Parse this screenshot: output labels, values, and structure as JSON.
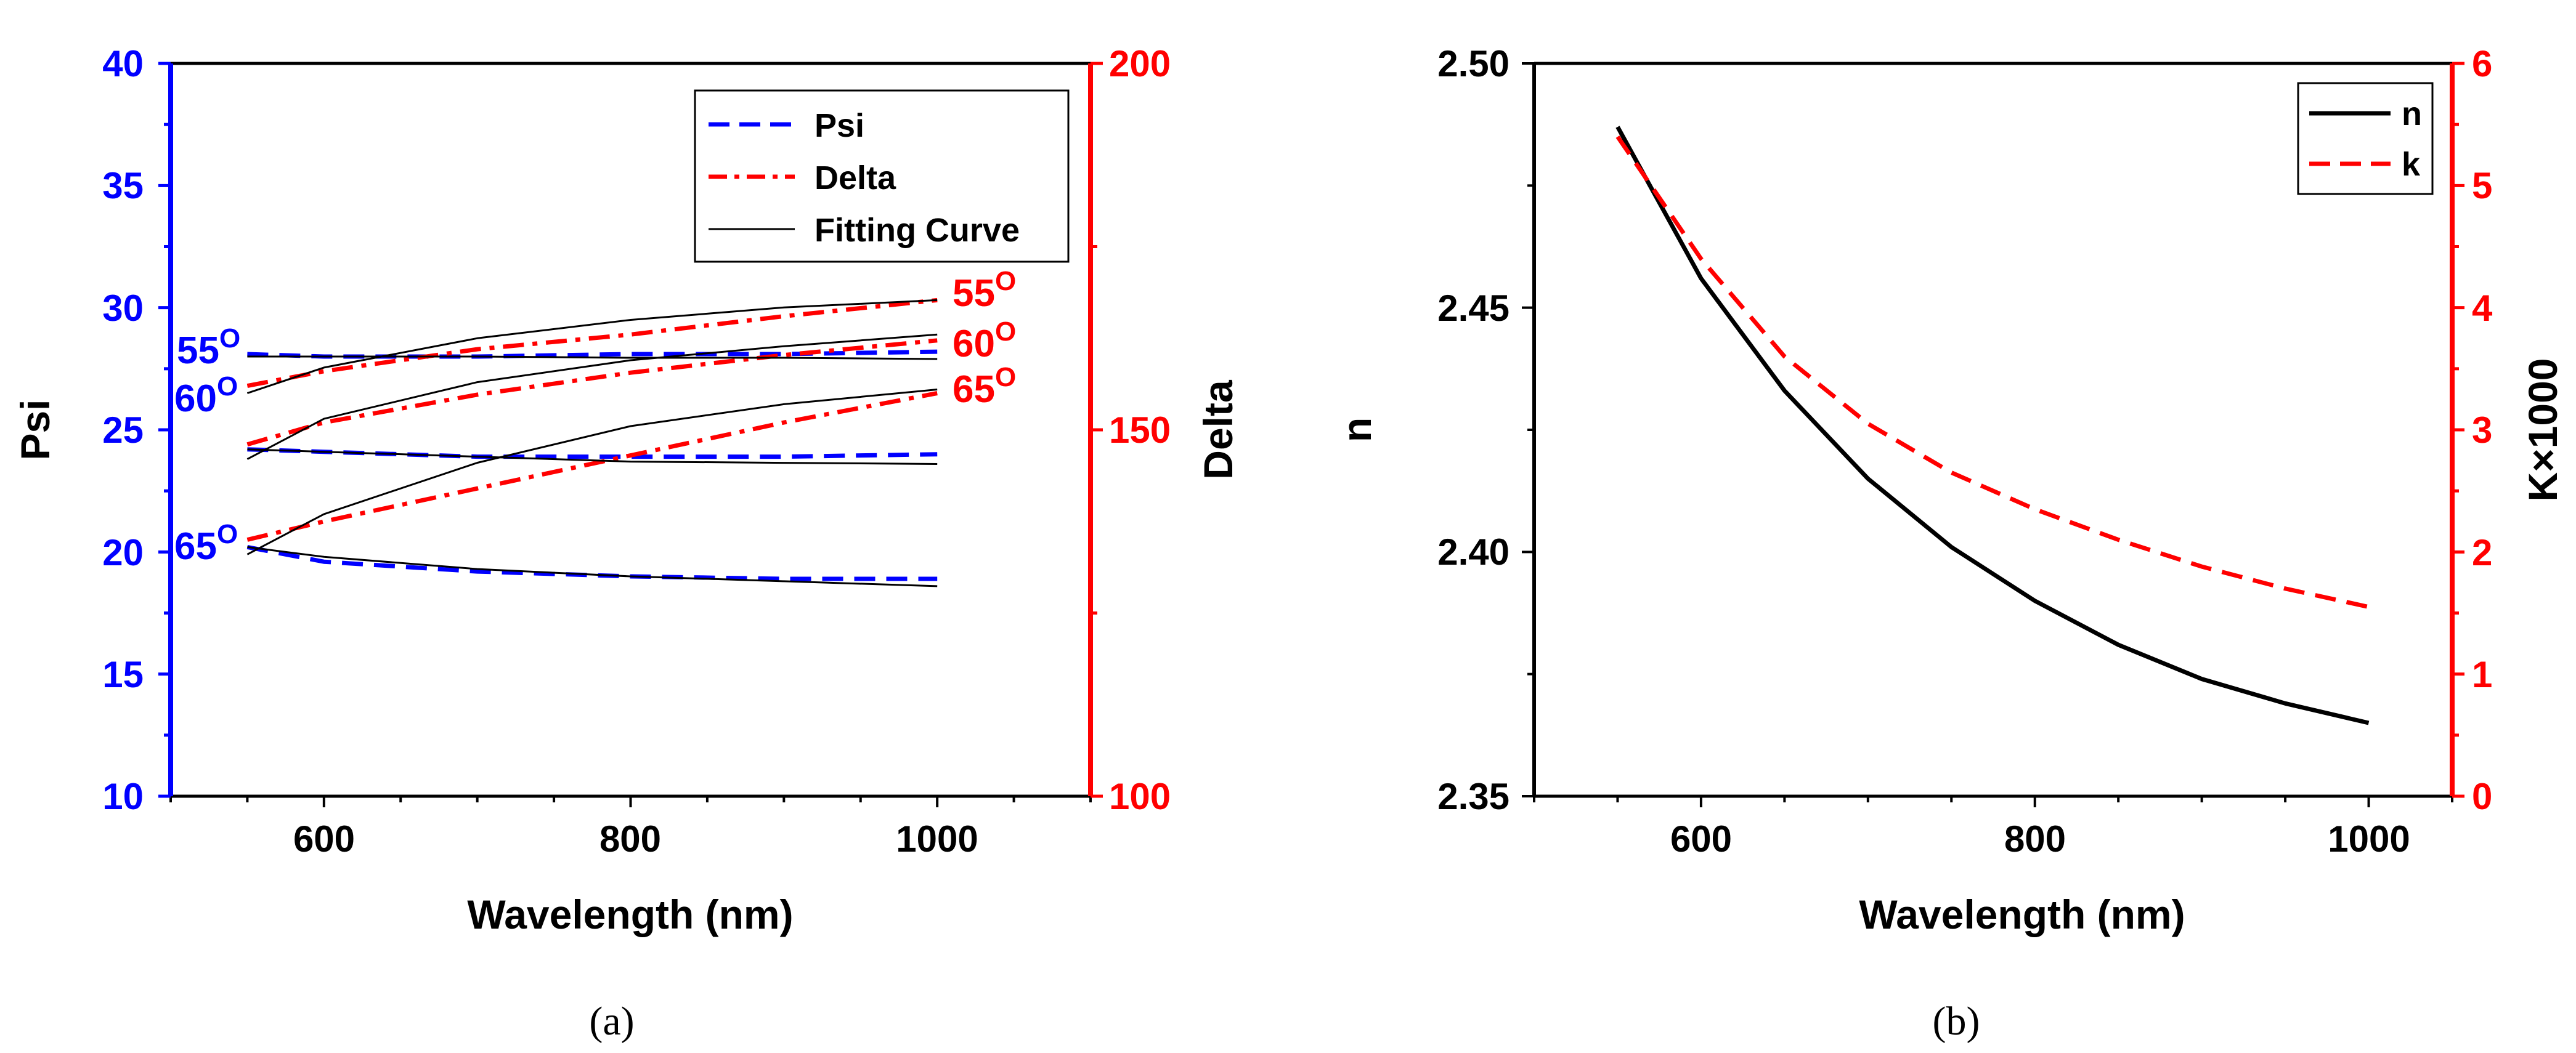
{
  "chart_data": [
    {
      "type": "line",
      "panel_label": "(a)",
      "xlabel": "Wavelength (nm)",
      "ylabel_left": "Psi",
      "ylabel_right": "Delta",
      "xlim": [
        500,
        1100
      ],
      "ylim_left": [
        10,
        40
      ],
      "ylim_right": [
        100,
        200
      ],
      "x_ticks": [
        "600",
        "800",
        "1000"
      ],
      "left_ticks": [
        "10",
        "15",
        "20",
        "25",
        "30",
        "35",
        "40"
      ],
      "right_ticks": [
        "100",
        "150",
        "200"
      ],
      "colors": {
        "psi": "#0000ff",
        "delta": "#ff0000",
        "fit": "#000000"
      },
      "legend": {
        "position": "top-right",
        "entries": [
          "Psi",
          "Delta",
          "Fitting Curve"
        ]
      },
      "annotations": {
        "left": [
          {
            "text": "55",
            "sup": "O"
          },
          {
            "text": "60",
            "sup": "O"
          },
          {
            "text": "65",
            "sup": "O"
          }
        ],
        "right": [
          {
            "text": "55",
            "sup": "O"
          },
          {
            "text": "60",
            "sup": "O"
          },
          {
            "text": "65",
            "sup": "O"
          }
        ]
      },
      "series": [
        {
          "name": "Psi 55°",
          "axis": "left",
          "style": "dash",
          "x": [
            550,
            600,
            700,
            800,
            900,
            1000
          ],
          "y": [
            28.1,
            28.0,
            28.0,
            28.1,
            28.1,
            28.2
          ]
        },
        {
          "name": "Psi 60°",
          "axis": "left",
          "style": "dash",
          "x": [
            550,
            600,
            700,
            800,
            900,
            1000
          ],
          "y": [
            24.2,
            24.1,
            23.9,
            23.9,
            23.9,
            24.0
          ]
        },
        {
          "name": "Psi 65°",
          "axis": "left",
          "style": "dash",
          "x": [
            550,
            600,
            700,
            800,
            900,
            1000
          ],
          "y": [
            20.2,
            19.6,
            19.2,
            19.0,
            18.9,
            18.9
          ]
        },
        {
          "name": "Delta 55°",
          "axis": "right",
          "style": "dashdot",
          "x": [
            550,
            600,
            700,
            800,
            900,
            1000
          ],
          "y": [
            156.0,
            158.0,
            161.0,
            163.0,
            165.5,
            167.7
          ]
        },
        {
          "name": "Delta 60°",
          "axis": "right",
          "style": "dashdot",
          "x": [
            550,
            600,
            700,
            800,
            900,
            1000
          ],
          "y": [
            148.0,
            151.0,
            154.8,
            157.8,
            160.2,
            162.2
          ]
        },
        {
          "name": "Delta 65°",
          "axis": "right",
          "style": "dashdot",
          "x": [
            550,
            600,
            700,
            800,
            900,
            1000
          ],
          "y": [
            135.0,
            137.5,
            142.0,
            146.5,
            151.0,
            155.0
          ]
        },
        {
          "name": "Fit Psi 55°",
          "axis": "left",
          "style": "solid",
          "x": [
            550,
            600,
            700,
            800,
            900,
            1000
          ],
          "y": [
            28.0,
            28.0,
            28.0,
            27.95,
            27.95,
            27.9
          ]
        },
        {
          "name": "Fit Psi 60°",
          "axis": "left",
          "style": "solid",
          "x": [
            550,
            600,
            700,
            800,
            900,
            1000
          ],
          "y": [
            24.2,
            24.1,
            23.9,
            23.7,
            23.65,
            23.6
          ]
        },
        {
          "name": "Fit Psi 65°",
          "axis": "left",
          "style": "solid",
          "x": [
            550,
            600,
            700,
            800,
            900,
            1000
          ],
          "y": [
            20.2,
            19.8,
            19.3,
            19.0,
            18.8,
            18.6
          ]
        },
        {
          "name": "Fit Delta 55°",
          "axis": "right",
          "style": "solid",
          "x": [
            550,
            600,
            700,
            800,
            900,
            1000
          ],
          "y": [
            155.0,
            158.5,
            162.5,
            165.0,
            166.7,
            167.7
          ]
        },
        {
          "name": "Fit Delta 60°",
          "axis": "right",
          "style": "solid",
          "x": [
            550,
            600,
            700,
            800,
            900,
            1000
          ],
          "y": [
            146.0,
            151.5,
            156.5,
            159.5,
            161.4,
            163.0
          ]
        },
        {
          "name": "Fit Delta 65°",
          "axis": "right",
          "style": "solid",
          "x": [
            550,
            600,
            700,
            800,
            900,
            1000
          ],
          "y": [
            133.0,
            138.5,
            145.5,
            150.5,
            153.5,
            155.5
          ]
        }
      ]
    },
    {
      "type": "line",
      "panel_label": "(b)",
      "xlabel": "Wavelength  (nm)",
      "ylabel_left": "n",
      "ylabel_right": "K×1000",
      "xlim": [
        500,
        1050
      ],
      "ylim_left": [
        2.35,
        2.5
      ],
      "ylim_right": [
        0,
        6
      ],
      "x_ticks": [
        "600",
        "800",
        "1000"
      ],
      "left_ticks": [
        "2.35",
        "2.40",
        "2.45",
        "2.50"
      ],
      "right_ticks": [
        "0",
        "1",
        "2",
        "3",
        "4",
        "5",
        "6"
      ],
      "colors": {
        "n": "#000000",
        "k": "#ff0000"
      },
      "legend": {
        "position": "top-right",
        "entries": [
          "n",
          "k"
        ]
      },
      "series": [
        {
          "name": "n",
          "axis": "left",
          "style": "solid",
          "x": [
            550,
            600,
            650,
            700,
            750,
            800,
            850,
            900,
            950,
            1000
          ],
          "y": [
            2.487,
            2.456,
            2.433,
            2.415,
            2.401,
            2.39,
            2.381,
            2.374,
            2.369,
            2.365
          ]
        },
        {
          "name": "k",
          "axis": "right",
          "style": "dash",
          "x": [
            550,
            600,
            650,
            700,
            750,
            800,
            850,
            900,
            950,
            1000
          ],
          "y": [
            5.4,
            4.4,
            3.6,
            3.05,
            2.65,
            2.35,
            2.1,
            1.88,
            1.7,
            1.55
          ]
        }
      ]
    }
  ]
}
